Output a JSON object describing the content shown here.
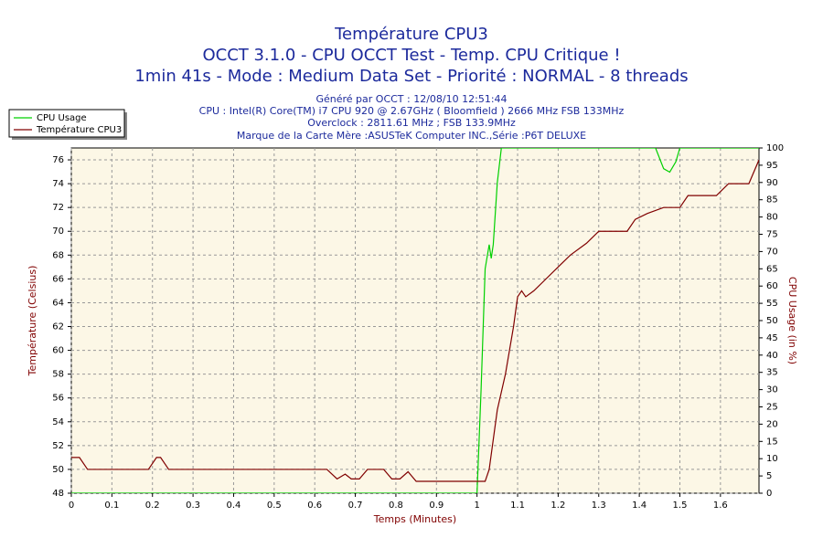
{
  "chart_data": {
    "type": "line",
    "title": "Température CPU3",
    "subtitles": [
      "OCCT 3.1.0 - CPU OCCT Test - Temp. CPU Critique !",
      "1min 41s - Mode : Medium Data Set - Priorité : NORMAL - 8 threads"
    ],
    "info": [
      "Généré par OCCT : 12/08/10 12:51:44",
      "CPU : Intel(R) Core(TM) i7 CPU 920 @ 2.67GHz ( Bloomfield ) 2666 MHz FSB 133MHz",
      "Overclock : 2811.61 MHz ; FSB 133.9MHz",
      "Marque de la Carte Mère :ASUSTeK Computer INC.,Série :P6T DELUXE"
    ],
    "x_label": "Temps (Minutes)",
    "y_label": "Température (Celsius)",
    "y2_label": "CPU Usage (in %)",
    "xlim": [
      0,
      1.695
    ],
    "xticks": [
      0,
      0.1,
      0.2,
      0.3,
      0.4,
      0.5,
      0.6,
      0.7,
      0.8,
      0.9,
      1,
      1.1,
      1.2,
      1.3,
      1.4,
      1.5,
      1.6
    ],
    "ylim": [
      48,
      77
    ],
    "yticks": [
      48,
      50,
      52,
      54,
      56,
      58,
      60,
      62,
      64,
      66,
      68,
      70,
      72,
      74,
      76
    ],
    "y2lim": [
      0,
      100
    ],
    "y2ticks": [
      0,
      5,
      10,
      15,
      20,
      25,
      30,
      35,
      40,
      45,
      50,
      55,
      60,
      65,
      70,
      75,
      80,
      85,
      90,
      95,
      100
    ],
    "grid": true,
    "legend": "top-left",
    "series": [
      {
        "name": "CPU Usage",
        "color": "#00d000",
        "axis": "y2",
        "x": [
          0,
          0.99,
          1.0,
          1.01,
          1.02,
          1.03,
          1.035,
          1.04,
          1.05,
          1.06,
          1.44,
          1.46,
          1.475,
          1.49,
          1.5,
          1.695
        ],
        "values": [
          0,
          0,
          0,
          30,
          65,
          72,
          68,
          72,
          90,
          100,
          100,
          94,
          93,
          96,
          100,
          100
        ]
      },
      {
        "name": "Température CPU3",
        "color": "#800000",
        "x": [
          0,
          0.02,
          0.04,
          0.19,
          0.21,
          0.22,
          0.24,
          0.63,
          0.655,
          0.675,
          0.69,
          0.71,
          0.73,
          0.77,
          0.79,
          0.81,
          0.83,
          0.85,
          0.99,
          1.02,
          1.03,
          1.05,
          1.07,
          1.09,
          1.1,
          1.11,
          1.12,
          1.14,
          1.17,
          1.2,
          1.23,
          1.27,
          1.3,
          1.37,
          1.39,
          1.42,
          1.46,
          1.5,
          1.52,
          1.59,
          1.62,
          1.67,
          1.695
        ],
        "values": [
          51,
          51,
          50,
          50,
          51,
          51,
          50,
          50,
          49.2,
          49.6,
          49.2,
          49.2,
          50,
          50,
          49.2,
          49.2,
          49.8,
          49,
          49,
          49,
          50,
          55,
          58,
          62,
          64.5,
          65,
          64.5,
          65,
          66,
          67,
          68,
          69,
          70,
          70,
          71,
          71.5,
          72,
          72,
          73,
          73,
          74,
          74,
          76
        ]
      }
    ]
  }
}
